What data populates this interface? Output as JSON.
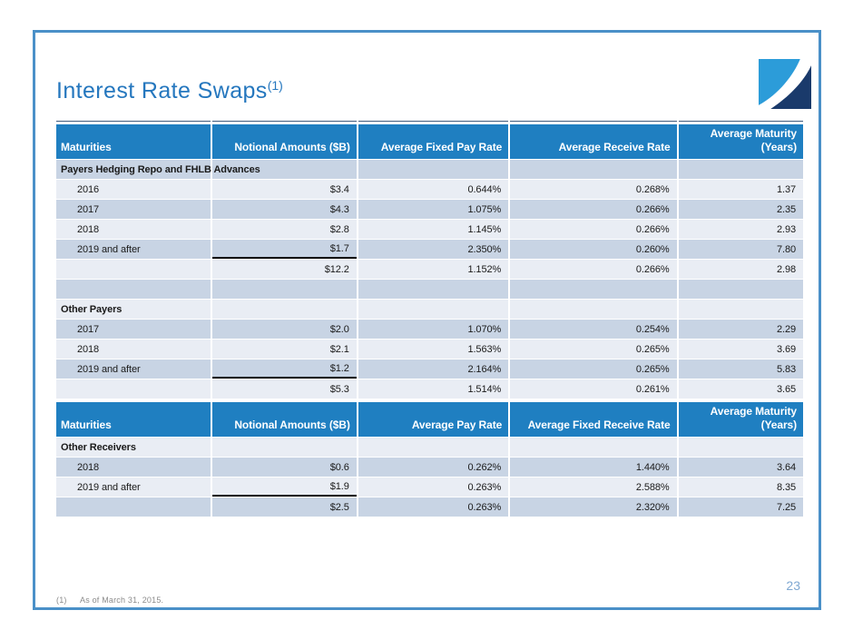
{
  "slide": {
    "title": "Interest Rate Swaps",
    "title_superscript": "(1)",
    "footnote_marker": "(1)",
    "footnote_text": "As of March 31, 2015.",
    "page_number": "23",
    "logo_name": "company-logo"
  },
  "colors": {
    "header_blue": "#1F7FC1",
    "row_light": "#E9EDF4",
    "row_medium": "#C8D4E4",
    "title_blue": "#2577BE",
    "slide_border_blue": "#4A90C8",
    "page_number_blue": "#7FA8D2",
    "footnote_gray": "#8C8C8C",
    "sum_underline": "#000000",
    "logo_light_blue": "#2C9CD9",
    "logo_navy": "#1A3A6B"
  },
  "tables": [
    {
      "name": "payers-swaps-table",
      "topline": true,
      "headers": [
        "Maturities",
        "Notional Amounts ($B)",
        "Average Fixed Pay Rate",
        "Average Receive Rate",
        "Average Maturity\n(Years)"
      ],
      "rows": [
        {
          "type": "section",
          "shade": "medium",
          "cells": [
            "Payers Hedging Repo and FHLB Advances",
            "",
            "",
            "",
            ""
          ]
        },
        {
          "type": "data",
          "shade": "light",
          "cells": [
            "2016",
            "$3.4",
            "0.644%",
            "0.268%",
            "1.37"
          ]
        },
        {
          "type": "data",
          "shade": "medium",
          "cells": [
            "2017",
            "$4.3",
            "1.075%",
            "0.266%",
            "2.35"
          ]
        },
        {
          "type": "data",
          "shade": "light",
          "cells": [
            "2018",
            "$2.8",
            "1.145%",
            "0.266%",
            "2.93"
          ]
        },
        {
          "type": "data",
          "shade": "medium",
          "underline_col": 1,
          "cells": [
            "2019 and after",
            "$1.7",
            "2.350%",
            "0.260%",
            "7.80"
          ]
        },
        {
          "type": "total",
          "shade": "light",
          "cells": [
            "",
            "$12.2",
            "1.152%",
            "0.266%",
            "2.98"
          ]
        },
        {
          "type": "spacer",
          "shade": "medium",
          "cells": [
            "",
            "",
            "",
            "",
            ""
          ]
        },
        {
          "type": "section",
          "shade": "light",
          "cells": [
            "Other Payers",
            "",
            "",
            "",
            ""
          ]
        },
        {
          "type": "data",
          "shade": "medium",
          "cells": [
            "2017",
            "$2.0",
            "1.070%",
            "0.254%",
            "2.29"
          ]
        },
        {
          "type": "data",
          "shade": "light",
          "cells": [
            "2018",
            "$2.1",
            "1.563%",
            "0.265%",
            "3.69"
          ]
        },
        {
          "type": "data",
          "shade": "medium",
          "underline_col": 1,
          "cells": [
            "2019 and after",
            "$1.2",
            "2.164%",
            "0.265%",
            "5.83"
          ]
        },
        {
          "type": "total",
          "shade": "light",
          "cells": [
            "",
            "$5.3",
            "1.514%",
            "0.261%",
            "3.65"
          ]
        }
      ]
    },
    {
      "name": "receivers-swaps-table",
      "topline": false,
      "headers": [
        "Maturities",
        "Notional Amounts ($B)",
        "Average Pay Rate",
        "Average Fixed Receive Rate",
        "Average Maturity\n(Years)"
      ],
      "rows": [
        {
          "type": "section",
          "shade": "light",
          "cells": [
            "Other Receivers",
            "",
            "",
            "",
            ""
          ]
        },
        {
          "type": "data",
          "shade": "medium",
          "cells": [
            "2018",
            "$0.6",
            "0.262%",
            "1.440%",
            "3.64"
          ]
        },
        {
          "type": "data",
          "shade": "light",
          "underline_col": 1,
          "cells": [
            "2019 and after",
            "$1.9",
            "0.263%",
            "2.588%",
            "8.35"
          ]
        },
        {
          "type": "total",
          "shade": "medium",
          "cells": [
            "",
            "$2.5",
            "0.263%",
            "2.320%",
            "7.25"
          ]
        }
      ]
    }
  ]
}
